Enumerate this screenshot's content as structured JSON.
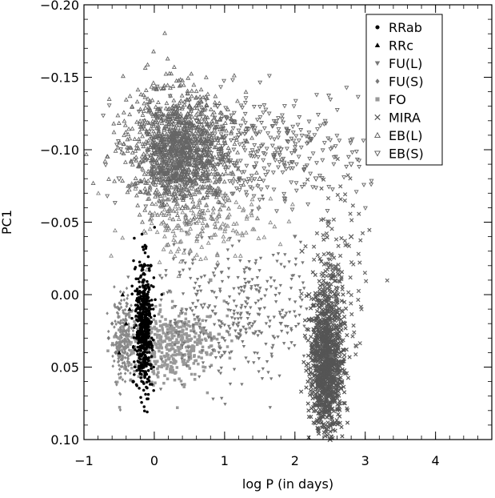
{
  "chart_data": {
    "type": "scatter",
    "title": "",
    "xlabel": "log P (in days)",
    "ylabel": "PC1",
    "xlim": [
      -1,
      4.8
    ],
    "ylim": [
      0.1,
      -0.2
    ],
    "y_axis_inverted": true,
    "grid": false,
    "legend_position": "top-right",
    "x_ticks": [
      -1,
      0,
      1,
      2,
      3,
      4
    ],
    "x_tick_labels": [
      "−1",
      "0",
      "1",
      "2",
      "3",
      "4"
    ],
    "y_ticks": [
      -0.2,
      -0.15,
      -0.1,
      -0.05,
      0.0,
      0.05,
      0.1
    ],
    "y_tick_labels": [
      "−0.20",
      "−0.15",
      "−0.10",
      "−0.05",
      "0.00",
      "0.05",
      "0.10"
    ],
    "series": [
      {
        "name": "RRab",
        "marker": "filled-circle",
        "color": "#000000",
        "points": [
          [
            -0.25,
            0.03
          ],
          [
            -0.2,
            0.01
          ],
          [
            -0.15,
            -0.01
          ],
          [
            -0.1,
            0.0
          ],
          [
            -0.2,
            0.05
          ],
          [
            -0.15,
            0.04
          ],
          [
            -0.3,
            0.06
          ],
          [
            -0.05,
            -0.02
          ],
          [
            -0.12,
            0.02
          ],
          [
            -0.22,
            0.03
          ]
        ]
      },
      {
        "name": "RRc",
        "marker": "filled-triangle",
        "color": "#000000",
        "points": [
          [
            -0.45,
            0.0
          ],
          [
            -0.4,
            0.02
          ],
          [
            -0.5,
            0.04
          ],
          [
            -0.35,
            0.01
          ]
        ]
      },
      {
        "name": "FU(L)",
        "marker": "filled-inverted-triangle",
        "color": "#777777",
        "points": [
          [
            0.3,
            0.02
          ],
          [
            0.6,
            0.0
          ],
          [
            0.9,
            -0.02
          ],
          [
            1.2,
            0.03
          ],
          [
            1.5,
            0.01
          ],
          [
            1.8,
            0.02
          ],
          [
            2.0,
            -0.04
          ],
          [
            1.0,
            0.04
          ]
        ]
      },
      {
        "name": "FU(S)",
        "marker": "filled-diamond",
        "color": "#777777",
        "points": [
          [
            -0.6,
            0.02
          ],
          [
            -0.55,
            0.04
          ],
          [
            -0.5,
            0.01
          ],
          [
            -0.65,
            0.03
          ]
        ]
      },
      {
        "name": "FO",
        "marker": "filled-square",
        "color": "#999999",
        "points": [
          [
            -0.5,
            0.03
          ],
          [
            -0.3,
            0.04
          ],
          [
            0.0,
            0.04
          ],
          [
            0.2,
            0.03
          ],
          [
            0.4,
            0.03
          ],
          [
            0.6,
            0.02
          ],
          [
            0.8,
            -0.01
          ],
          [
            0.5,
            0.04
          ]
        ]
      },
      {
        "name": "MIRA",
        "marker": "cross",
        "color": "#555555",
        "points": [
          [
            2.2,
            0.0
          ],
          [
            2.4,
            0.03
          ],
          [
            2.5,
            0.06
          ],
          [
            2.3,
            0.08
          ],
          [
            2.6,
            0.05
          ],
          [
            2.4,
            0.09
          ],
          [
            2.7,
            0.02
          ],
          [
            2.1,
            -0.03
          ],
          [
            2.8,
            -0.04
          ],
          [
            2.5,
            0.1
          ]
        ]
      },
      {
        "name": "EB(L)",
        "marker": "open-triangle",
        "color": "#555555",
        "points": [
          [
            0.0,
            -0.1
          ],
          [
            0.3,
            -0.12
          ],
          [
            0.5,
            -0.13
          ],
          [
            0.2,
            -0.08
          ],
          [
            0.7,
            -0.1
          ],
          [
            1.0,
            -0.09
          ],
          [
            0.4,
            -0.06
          ],
          [
            1.5,
            -0.08
          ]
        ]
      },
      {
        "name": "EB(S)",
        "marker": "open-inverted-triangle",
        "color": "#555555",
        "points": [
          [
            -0.5,
            -0.08
          ],
          [
            0.1,
            -0.1
          ],
          [
            0.6,
            -0.12
          ],
          [
            1.2,
            -0.11
          ],
          [
            1.8,
            -0.1
          ],
          [
            2.3,
            -0.08
          ],
          [
            2.8,
            -0.09
          ],
          [
            3.2,
            -0.12
          ],
          [
            0.9,
            -0.13
          ]
        ]
      }
    ]
  }
}
